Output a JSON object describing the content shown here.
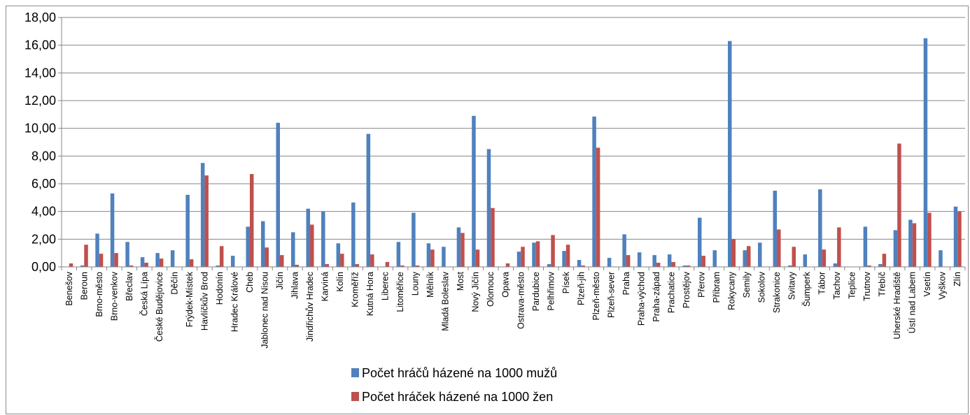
{
  "chart_data": {
    "type": "bar",
    "title": "",
    "xlabel": "",
    "ylabel": "",
    "ylim": [
      0,
      18
    ],
    "yticks": [
      "0,00",
      "2,00",
      "4,00",
      "6,00",
      "8,00",
      "10,00",
      "12,00",
      "14,00",
      "16,00",
      "18,00"
    ],
    "grid": "horizontal",
    "legend_position": "bottom",
    "categories": [
      "Benešov",
      "Beroun",
      "Brno-město",
      "Brno-venkov",
      "Břeclav",
      "Česká Lípa",
      "České Budějovice",
      "Děčín",
      "Frýdek-Místek",
      "Havlíčkův Brod",
      "Hodonín",
      "Hradec Králové",
      "Cheb",
      "Jablonec nad Nisou",
      "Jičín",
      "Jihlava",
      "Jindřichův Hradec",
      "Karviná",
      "Kolín",
      "Kroměříž",
      "Kutná Hora",
      "Liberec",
      "Litoměřice",
      "Louny",
      "Mělník",
      "Mladá Boleslav",
      "Most",
      "Nový Jičín",
      "Olomouc",
      "Opava",
      "Ostrava-město",
      "Pardubice",
      "Pelhřimov",
      "Písek",
      "Plzeň-jih",
      "Plzeň-město",
      "Plzeň-sever",
      "Praha",
      "Praha-východ",
      "Praha-západ",
      "Prachatice",
      "Prostějov",
      "Přerov",
      "Příbram",
      "Rokycany",
      "Semily",
      "Sokolov",
      "Strakonice",
      "Svitavy",
      "Šumperk",
      "Tábor",
      "Tachov",
      "Teplice",
      "Trutnov",
      "Třebíč",
      "Uherské Hradiště",
      "Ústí nad Labem",
      "Vsetín",
      "Vyškov",
      "Zlín"
    ],
    "series": [
      {
        "name": "Počet hráčů házené na 1000 mužů",
        "color": "#4f81bd",
        "values": [
          0.0,
          0.1,
          2.4,
          5.3,
          1.8,
          0.7,
          1.0,
          1.2,
          5.2,
          7.5,
          0.1,
          0.8,
          2.9,
          3.3,
          10.4,
          2.5,
          4.2,
          4.0,
          1.7,
          4.65,
          9.6,
          0.0,
          1.8,
          3.9,
          1.7,
          1.45,
          2.85,
          10.9,
          8.5,
          0.0,
          1.1,
          1.75,
          0.2,
          1.15,
          0.5,
          10.85,
          0.65,
          2.35,
          1.05,
          0.85,
          0.9,
          0.1,
          3.55,
          1.2,
          16.3,
          1.2,
          1.75,
          5.5,
          0.1,
          0.9,
          5.6,
          0.25,
          0.0,
          2.9,
          0.2,
          2.65,
          3.4,
          16.5,
          1.2,
          4.35
        ]
      },
      {
        "name": "Počet hráček házené na 1000 žen",
        "color": "#c0504d",
        "values": [
          0.25,
          1.6,
          0.95,
          1.0,
          0.1,
          0.3,
          0.6,
          0.0,
          0.55,
          6.6,
          1.5,
          0.0,
          6.7,
          1.4,
          0.85,
          0.15,
          3.05,
          0.2,
          0.95,
          0.2,
          0.9,
          0.35,
          0.1,
          0.1,
          1.25,
          0.0,
          2.45,
          1.25,
          4.25,
          0.25,
          1.45,
          1.85,
          2.3,
          1.6,
          0.1,
          8.6,
          0.0,
          0.85,
          0.0,
          0.3,
          0.35,
          0.1,
          0.8,
          0.0,
          2.0,
          1.5,
          0.0,
          2.7,
          1.45,
          0.0,
          1.25,
          2.85,
          0.0,
          0.1,
          0.95,
          8.9,
          3.15,
          3.9,
          0.0,
          4.0
        ]
      }
    ]
  }
}
